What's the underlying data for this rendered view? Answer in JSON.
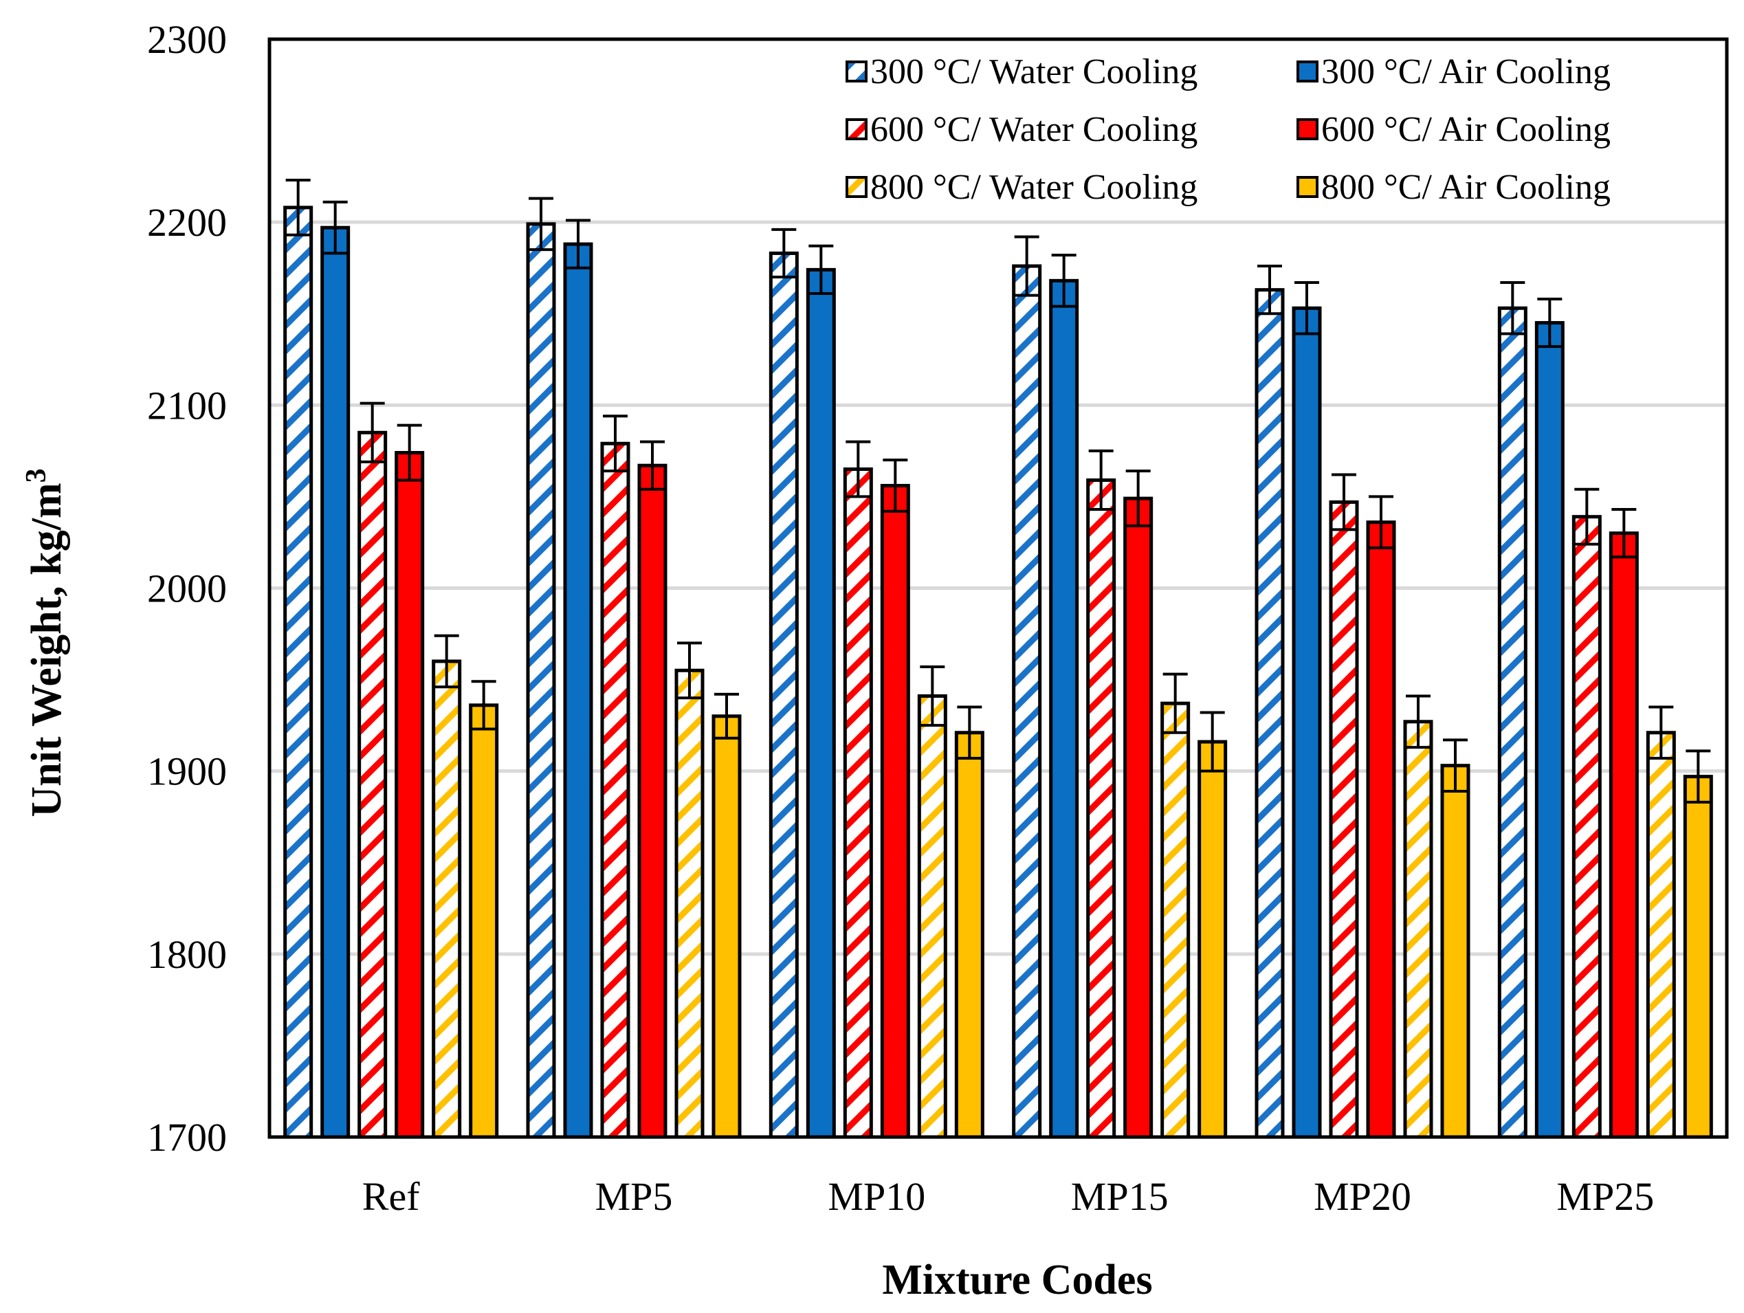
{
  "chart_data": {
    "type": "bar",
    "title": "",
    "xlabel": "Mixture Codes",
    "ylabel": "Unit Weight, kg/m",
    "ylabel_superscript": "3",
    "ylim": [
      1700,
      2300
    ],
    "yticks": [
      "1700",
      "1800",
      "1900",
      "2000",
      "2100",
      "2200",
      "2300"
    ],
    "ytick_values": [
      1700,
      1800,
      1900,
      2000,
      2100,
      2200,
      2300
    ],
    "grid": true,
    "legend_position": "top-right",
    "categories": [
      "Ref",
      "MP5",
      "MP10",
      "MP15",
      "MP20",
      "MP25"
    ],
    "series": [
      {
        "name": "300 °C/ Water Cooling",
        "color": "#1a73c9",
        "pattern": "hatched",
        "values": [
          2208,
          2199,
          2183,
          2176,
          2163,
          2153
        ],
        "errors": [
          15,
          14,
          13,
          16,
          13,
          14
        ]
      },
      {
        "name": "300 °C/ Air Cooling",
        "color": "#0b6fc4",
        "pattern": "solid",
        "values": [
          2197,
          2188,
          2174,
          2168,
          2153,
          2145
        ],
        "errors": [
          14,
          13,
          13,
          14,
          14,
          13
        ]
      },
      {
        "name": "600 °C/ Water Cooling",
        "color": "#ff0000",
        "pattern": "hatched",
        "values": [
          2085,
          2079,
          2065,
          2059,
          2047,
          2039
        ],
        "errors": [
          16,
          15,
          15,
          16,
          15,
          15
        ]
      },
      {
        "name": "600 °C/ Air Cooling",
        "color": "#ff0000",
        "pattern": "solid",
        "values": [
          2074,
          2067,
          2056,
          2049,
          2036,
          2030
        ],
        "errors": [
          15,
          13,
          14,
          15,
          14,
          13
        ]
      },
      {
        "name": "800 °C/ Water Cooling",
        "color": "#ffc000",
        "pattern": "hatched",
        "values": [
          1960,
          1955,
          1941,
          1937,
          1927,
          1921
        ],
        "errors": [
          14,
          15,
          16,
          16,
          14,
          14
        ]
      },
      {
        "name": "800 °C/ Air Cooling",
        "color": "#ffc000",
        "pattern": "solid",
        "values": [
          1936,
          1930,
          1921,
          1916,
          1903,
          1897
        ],
        "errors": [
          13,
          12,
          14,
          16,
          14,
          14
        ]
      }
    ]
  }
}
